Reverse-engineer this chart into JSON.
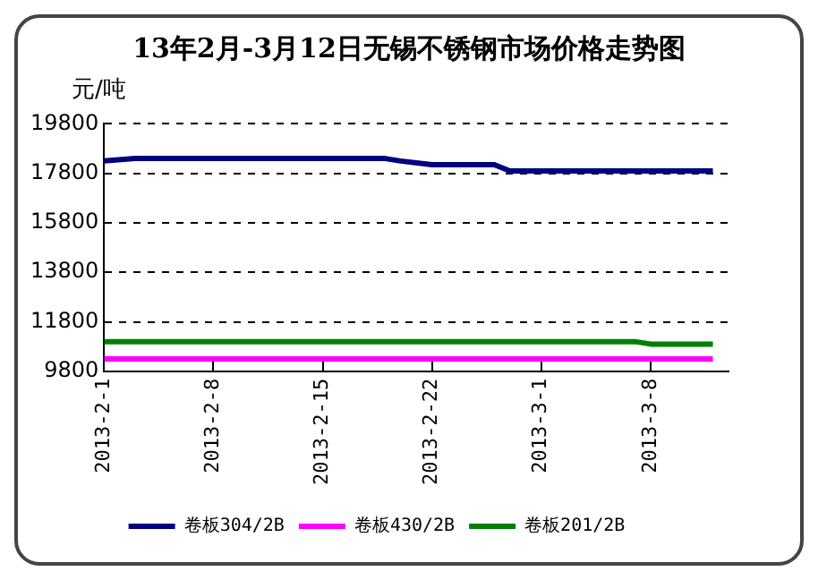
{
  "chart_data": {
    "type": "line",
    "title": "13年2月-3月12日无锡不锈钢市场价格走势图",
    "ylabel": "元/吨",
    "series": [
      {
        "name": "卷板304/2B",
        "color": "#000080",
        "x": [
          "2013-02-01",
          "2013-02-03",
          "2013-02-19",
          "2013-02-20",
          "2013-02-22",
          "2013-02-26",
          "2013-02-27",
          "2013-03-12"
        ],
        "values": [
          18300,
          18400,
          18400,
          18300,
          18150,
          18150,
          17900,
          17900
        ]
      },
      {
        "name": "卷板430/2B",
        "color": "#ff00ff",
        "x": [
          "2013-02-01",
          "2013-03-12"
        ],
        "values": [
          10300,
          10300
        ]
      },
      {
        "name": "卷板201/2B",
        "color": "#008000",
        "x": [
          "2013-02-01",
          "2013-03-07",
          "2013-03-08",
          "2013-03-12"
        ],
        "values": [
          11000,
          11000,
          10900,
          10900
        ]
      }
    ],
    "xlim": [
      "2013-02-01",
      "2013-03-13"
    ],
    "xticks": [
      {
        "value": "2013-02-01",
        "label": "2013-2-1"
      },
      {
        "value": "2013-02-08",
        "label": "2013-2-8"
      },
      {
        "value": "2013-02-15",
        "label": "2013-2-15"
      },
      {
        "value": "2013-02-22",
        "label": "2013-2-22"
      },
      {
        "value": "2013-03-01",
        "label": "2013-3-1"
      },
      {
        "value": "2013-03-08",
        "label": "2013-3-8"
      }
    ],
    "ylim": [
      9800,
      19800
    ],
    "yticks": [
      9800,
      11800,
      13800,
      15800,
      17800,
      19800
    ],
    "grid": "y",
    "line_style": "solid",
    "marker": "none",
    "legend": "bottom"
  }
}
